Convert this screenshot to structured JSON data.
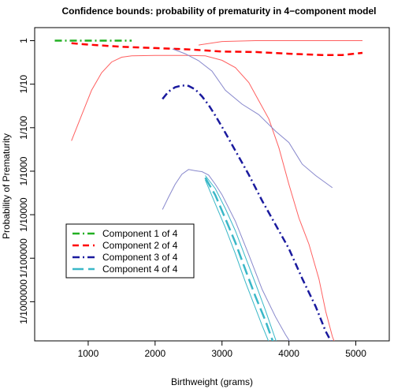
{
  "chart_data": {
    "type": "line",
    "title": "Confidence bounds: probability of prematurity in 4−component model",
    "xlabel": "Birthweight (grams)",
    "ylabel": "Probability of Prematurity",
    "xlim": [
      200,
      5500
    ],
    "ylog10_range": [
      -6.9,
      0.3
    ],
    "x_scale": "linear",
    "y_scale": "log10",
    "x_ticks": [
      1000,
      2000,
      3000,
      4000,
      5000
    ],
    "x_tick_labels": [
      "1000",
      "2000",
      "3000",
      "4000",
      "5000"
    ],
    "y_ticks_log10": [
      0,
      -1,
      -2,
      -3,
      -4,
      -5,
      -6
    ],
    "y_tick_labels": [
      "1",
      "1/10",
      "1/100",
      "1/1000",
      "1/10000",
      "1/100000",
      "1/1000000"
    ],
    "grid": false,
    "legend_position": "left",
    "series": [
      {
        "name": "Component 1 of 4",
        "color": "#22b022",
        "dash": "dashdot",
        "width": 2.5,
        "log10_points": [
          [
            500,
            0
          ],
          [
            1000,
            0
          ],
          [
            1500,
            0
          ],
          [
            1650,
            0
          ]
        ]
      },
      {
        "name": "Component 2 of 4",
        "color": "#ff0000",
        "dash": "dashed",
        "width": 2.5,
        "log10_points": [
          [
            750,
            -0.06
          ],
          [
            1000,
            -0.09
          ],
          [
            1500,
            -0.14
          ],
          [
            2000,
            -0.17
          ],
          [
            2500,
            -0.2
          ],
          [
            3000,
            -0.25
          ],
          [
            3500,
            -0.26
          ],
          [
            4000,
            -0.3
          ],
          [
            4500,
            -0.33
          ],
          [
            4800,
            -0.33
          ],
          [
            5100,
            -0.28
          ]
        ]
      },
      {
        "name": "Component 3 of 4",
        "color": "#1a1a9e",
        "dash": "dashdot",
        "width": 2.5,
        "log10_points": [
          [
            2110,
            -1.34
          ],
          [
            2200,
            -1.17
          ],
          [
            2300,
            -1.07
          ],
          [
            2400,
            -1.03
          ],
          [
            2500,
            -1.04
          ],
          [
            2600,
            -1.12
          ],
          [
            2700,
            -1.28
          ],
          [
            2800,
            -1.48
          ],
          [
            2900,
            -1.72
          ],
          [
            3000,
            -1.98
          ],
          [
            3200,
            -2.53
          ],
          [
            3400,
            -3.08
          ],
          [
            3600,
            -3.68
          ],
          [
            3800,
            -4.23
          ],
          [
            4000,
            -4.78
          ],
          [
            4200,
            -5.47
          ],
          [
            4400,
            -6.11
          ],
          [
            4550,
            -6.68
          ],
          [
            4660,
            -7.0
          ]
        ]
      },
      {
        "name": "Component 4 of 4",
        "color": "#3ab8c8",
        "dash": "longdash",
        "width": 2.5,
        "log10_points": [
          [
            2750,
            -3.15
          ],
          [
            2900,
            -3.55
          ],
          [
            3050,
            -4.09
          ],
          [
            3200,
            -4.64
          ],
          [
            3350,
            -5.27
          ],
          [
            3500,
            -5.88
          ],
          [
            3650,
            -6.44
          ],
          [
            3780,
            -7.0
          ]
        ]
      },
      {
        "color": "#ff6060",
        "dash": "solid",
        "width": 1,
        "log10_points": [
          [
            750,
            -2.3
          ],
          [
            900,
            -1.72
          ],
          [
            1050,
            -1.14
          ],
          [
            1200,
            -0.74
          ],
          [
            1350,
            -0.49
          ],
          [
            1500,
            -0.38
          ],
          [
            1650,
            -0.35
          ],
          [
            2000,
            -0.34
          ],
          [
            2500,
            -0.34
          ],
          [
            2750,
            -0.35
          ],
          [
            3000,
            -0.45
          ],
          [
            3200,
            -0.62
          ],
          [
            3400,
            -0.96
          ],
          [
            3550,
            -1.38
          ],
          [
            3700,
            -1.8
          ],
          [
            3850,
            -2.46
          ],
          [
            4000,
            -3.3
          ],
          [
            4150,
            -4.08
          ],
          [
            4300,
            -4.68
          ],
          [
            4450,
            -5.48
          ],
          [
            4550,
            -6.22
          ],
          [
            4650,
            -6.8
          ],
          [
            4700,
            -7.0
          ]
        ]
      },
      {
        "color": "#ff6060",
        "dash": "solid",
        "width": 1,
        "log10_points": [
          [
            2650,
            -0.1
          ],
          [
            3000,
            -0.02
          ],
          [
            3500,
            0
          ],
          [
            4000,
            0
          ],
          [
            4500,
            0
          ],
          [
            5100,
            0
          ]
        ]
      },
      {
        "color": "#8888cc",
        "dash": "solid",
        "width": 1,
        "log10_points": [
          [
            2260,
            -0.19
          ],
          [
            2450,
            -0.3
          ],
          [
            2650,
            -0.46
          ],
          [
            2850,
            -0.7
          ],
          [
            3050,
            -1.14
          ],
          [
            3300,
            -1.46
          ],
          [
            3550,
            -1.7
          ],
          [
            3800,
            -2.08
          ],
          [
            4000,
            -2.34
          ],
          [
            4200,
            -2.84
          ],
          [
            4400,
            -3.1
          ],
          [
            4650,
            -3.38
          ]
        ]
      },
      {
        "color": "#8888cc",
        "dash": "solid",
        "width": 1,
        "log10_points": [
          [
            2110,
            -3.88
          ],
          [
            2200,
            -3.6
          ],
          [
            2300,
            -3.3
          ],
          [
            2400,
            -3.07
          ],
          [
            2500,
            -2.96
          ],
          [
            2600,
            -2.99
          ],
          [
            2700,
            -3.01
          ],
          [
            2800,
            -3.09
          ],
          [
            2900,
            -3.3
          ],
          [
            3000,
            -3.54
          ],
          [
            3200,
            -4.15
          ],
          [
            3400,
            -4.92
          ],
          [
            3600,
            -5.72
          ],
          [
            3800,
            -6.35
          ],
          [
            3950,
            -6.76
          ],
          [
            4050,
            -7.0
          ]
        ]
      },
      {
        "color": "#3ab8c8",
        "dash": "solid",
        "width": 1,
        "log10_points": [
          [
            2750,
            -3.1
          ],
          [
            2900,
            -3.4
          ],
          [
            3050,
            -3.86
          ],
          [
            3200,
            -4.37
          ],
          [
            3350,
            -4.98
          ],
          [
            3500,
            -5.58
          ],
          [
            3650,
            -6.2
          ],
          [
            3830,
            -7.0
          ]
        ]
      },
      {
        "color": "#3ab8c8",
        "dash": "solid",
        "width": 1,
        "log10_points": [
          [
            2750,
            -3.2
          ],
          [
            2900,
            -3.75
          ],
          [
            3050,
            -4.3
          ],
          [
            3200,
            -4.9
          ],
          [
            3350,
            -5.55
          ],
          [
            3500,
            -6.15
          ],
          [
            3600,
            -6.55
          ],
          [
            3720,
            -7.0
          ]
        ]
      }
    ]
  }
}
